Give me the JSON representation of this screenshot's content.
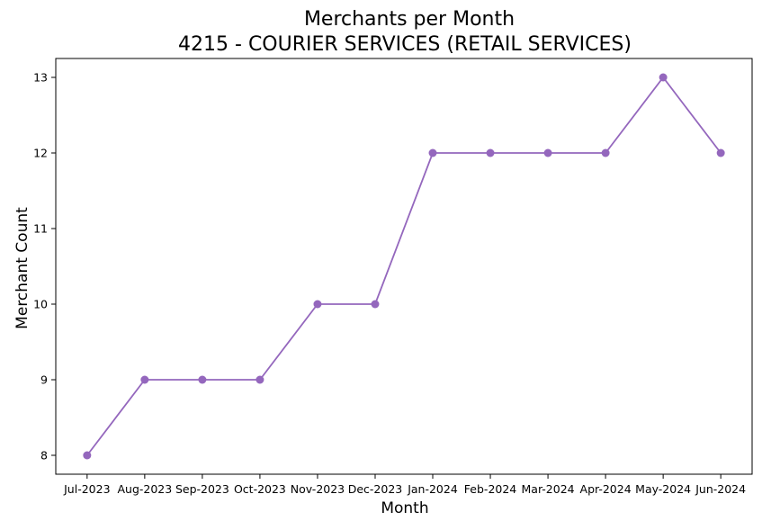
{
  "chart_data": {
    "type": "line",
    "title": "Merchants per Month",
    "subtitle": "4215 - COURIER SERVICES (RETAIL SERVICES)",
    "xlabel": "Month",
    "ylabel": "Merchant Count",
    "categories": [
      "Jul-2023",
      "Aug-2023",
      "Sep-2023",
      "Oct-2023",
      "Nov-2023",
      "Dec-2023",
      "Jan-2024",
      "Feb-2024",
      "Mar-2024",
      "Apr-2024",
      "May-2024",
      "Jun-2024"
    ],
    "series": [
      {
        "values": [
          8,
          9,
          9,
          9,
          10,
          10,
          12,
          12,
          12,
          12,
          13,
          12
        ],
        "color": "#9467bd"
      }
    ],
    "yticks": [
      8,
      9,
      10,
      11,
      12,
      13
    ],
    "ylim": [
      7.75,
      13.25
    ],
    "grid": false,
    "legend": "none"
  }
}
